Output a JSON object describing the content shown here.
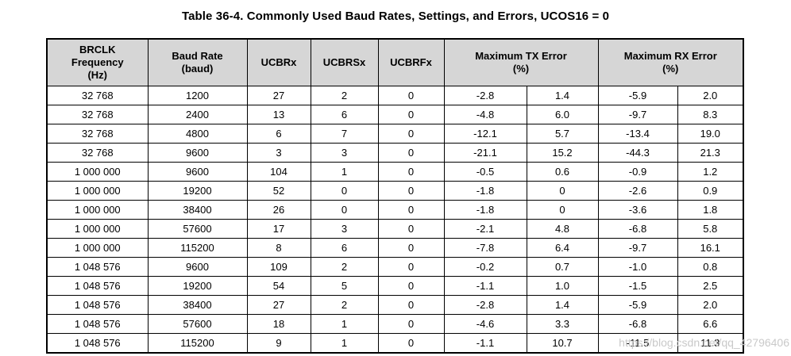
{
  "title": "Table 36-4. Commonly Used Baud Rates, Settings, and Errors, UCOS16 = 0",
  "colors": {
    "header_bg": "#d6d6d6",
    "border": "#000000",
    "watermark": "#c9c9c9"
  },
  "watermark": {
    "text": "https://blog.csdn.net/qq_42796406"
  },
  "table": {
    "headers": [
      {
        "label": "BRCLK\nFrequency\n(Hz)",
        "colspan": 1
      },
      {
        "label": "Baud Rate\n(baud)",
        "colspan": 1
      },
      {
        "label": "UCBRx",
        "colspan": 1
      },
      {
        "label": "UCBRSx",
        "colspan": 1
      },
      {
        "label": "UCBRFx",
        "colspan": 1
      },
      {
        "label": "Maximum TX Error\n(%)",
        "colspan": 2
      },
      {
        "label": "Maximum RX Error\n(%)",
        "colspan": 2
      }
    ],
    "rows": [
      [
        "32 768",
        "1200",
        "27",
        "2",
        "0",
        "-2.8",
        "1.4",
        "-5.9",
        "2.0"
      ],
      [
        "32 768",
        "2400",
        "13",
        "6",
        "0",
        "-4.8",
        "6.0",
        "-9.7",
        "8.3"
      ],
      [
        "32 768",
        "4800",
        "6",
        "7",
        "0",
        "-12.1",
        "5.7",
        "-13.4",
        "19.0"
      ],
      [
        "32 768",
        "9600",
        "3",
        "3",
        "0",
        "-21.1",
        "15.2",
        "-44.3",
        "21.3"
      ],
      [
        "1 000 000",
        "9600",
        "104",
        "1",
        "0",
        "-0.5",
        "0.6",
        "-0.9",
        "1.2"
      ],
      [
        "1 000 000",
        "19200",
        "52",
        "0",
        "0",
        "-1.8",
        "0",
        "-2.6",
        "0.9"
      ],
      [
        "1 000 000",
        "38400",
        "26",
        "0",
        "0",
        "-1.8",
        "0",
        "-3.6",
        "1.8"
      ],
      [
        "1 000 000",
        "57600",
        "17",
        "3",
        "0",
        "-2.1",
        "4.8",
        "-6.8",
        "5.8"
      ],
      [
        "1 000 000",
        "115200",
        "8",
        "6",
        "0",
        "-7.8",
        "6.4",
        "-9.7",
        "16.1"
      ],
      [
        "1 048 576",
        "9600",
        "109",
        "2",
        "0",
        "-0.2",
        "0.7",
        "-1.0",
        "0.8"
      ],
      [
        "1 048 576",
        "19200",
        "54",
        "5",
        "0",
        "-1.1",
        "1.0",
        "-1.5",
        "2.5"
      ],
      [
        "1 048 576",
        "38400",
        "27",
        "2",
        "0",
        "-2.8",
        "1.4",
        "-5.9",
        "2.0"
      ],
      [
        "1 048 576",
        "57600",
        "18",
        "1",
        "0",
        "-4.6",
        "3.3",
        "-6.8",
        "6.6"
      ],
      [
        "1 048 576",
        "115200",
        "9",
        "1",
        "0",
        "-1.1",
        "10.7",
        "-11.5",
        "11.3"
      ]
    ]
  }
}
